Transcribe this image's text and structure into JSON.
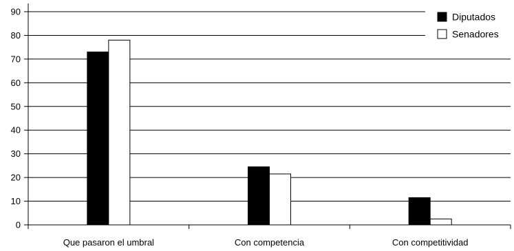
{
  "chart_data": {
    "type": "bar",
    "categories": [
      "Que pasaron el umbral",
      "Con competencia",
      "Con competitividad"
    ],
    "series": [
      {
        "name": "Diputados",
        "values": [
          73,
          24.5,
          11.5
        ],
        "color": "#000000"
      },
      {
        "name": "Senadores",
        "values": [
          78,
          21.5,
          2.5
        ],
        "color": "#ffffff"
      }
    ],
    "title": "",
    "xlabel": "",
    "ylabel": "",
    "ylim": [
      0,
      90
    ],
    "yticks": [
      0,
      10,
      20,
      30,
      40,
      50,
      60,
      70,
      80,
      90
    ],
    "grid": true,
    "legend": "top-right"
  }
}
